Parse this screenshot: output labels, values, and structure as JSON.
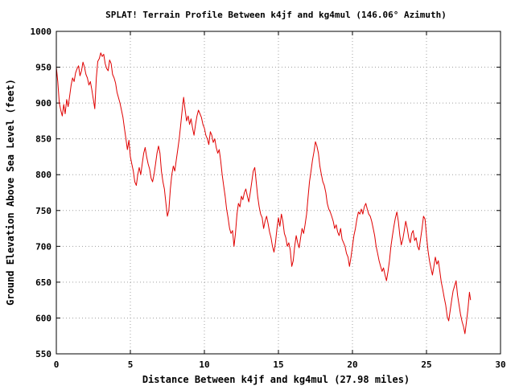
{
  "chart_data": {
    "type": "line",
    "title": "SPLAT! Terrain Profile Between k4jf and kg4mul (146.06° Azimuth)",
    "xlabel": "Distance Between k4jf and kg4mul (27.98 miles)",
    "ylabel": "Ground Elevation Above Sea Level (feet)",
    "xlim": [
      0,
      30
    ],
    "ylim": [
      550,
      1000
    ],
    "x_ticks": [
      0,
      5,
      10,
      15,
      20,
      25,
      30
    ],
    "y_ticks": [
      550,
      600,
      650,
      700,
      750,
      800,
      850,
      900,
      950,
      1000
    ],
    "x_tick_labels": [
      "0",
      "5",
      "10",
      "15",
      "20",
      "25",
      "30"
    ],
    "y_tick_labels": [
      "550",
      "600",
      "650",
      "700",
      "750",
      "800",
      "850",
      "900",
      "950",
      "1000"
    ],
    "grid": true,
    "series": [
      {
        "color": "#e00000",
        "points": [
          [
            0.0,
            950
          ],
          [
            0.1,
            930
          ],
          [
            0.2,
            900
          ],
          [
            0.3,
            890
          ],
          [
            0.4,
            882
          ],
          [
            0.5,
            898
          ],
          [
            0.6,
            885
          ],
          [
            0.7,
            905
          ],
          [
            0.8,
            895
          ],
          [
            0.9,
            910
          ],
          [
            1.0,
            925
          ],
          [
            1.1,
            935
          ],
          [
            1.2,
            930
          ],
          [
            1.3,
            942
          ],
          [
            1.4,
            948
          ],
          [
            1.5,
            952
          ],
          [
            1.6,
            938
          ],
          [
            1.7,
            945
          ],
          [
            1.8,
            957
          ],
          [
            1.9,
            950
          ],
          [
            2.0,
            940
          ],
          [
            2.1,
            935
          ],
          [
            2.2,
            925
          ],
          [
            2.3,
            930
          ],
          [
            2.4,
            918
          ],
          [
            2.5,
            905
          ],
          [
            2.6,
            892
          ],
          [
            2.7,
            935
          ],
          [
            2.8,
            958
          ],
          [
            2.9,
            962
          ],
          [
            3.0,
            970
          ],
          [
            3.1,
            965
          ],
          [
            3.2,
            968
          ],
          [
            3.3,
            955
          ],
          [
            3.4,
            948
          ],
          [
            3.5,
            945
          ],
          [
            3.6,
            960
          ],
          [
            3.7,
            955
          ],
          [
            3.8,
            940
          ],
          [
            3.9,
            935
          ],
          [
            4.0,
            928
          ],
          [
            4.1,
            915
          ],
          [
            4.3,
            900
          ],
          [
            4.5,
            880
          ],
          [
            4.6,
            865
          ],
          [
            4.7,
            850
          ],
          [
            4.8,
            835
          ],
          [
            4.9,
            848
          ],
          [
            5.0,
            825
          ],
          [
            5.1,
            815
          ],
          [
            5.2,
            805
          ],
          [
            5.3,
            790
          ],
          [
            5.4,
            785
          ],
          [
            5.5,
            800
          ],
          [
            5.6,
            810
          ],
          [
            5.7,
            800
          ],
          [
            5.8,
            815
          ],
          [
            5.9,
            830
          ],
          [
            6.0,
            838
          ],
          [
            6.1,
            825
          ],
          [
            6.2,
            815
          ],
          [
            6.3,
            808
          ],
          [
            6.4,
            795
          ],
          [
            6.5,
            790
          ],
          [
            6.6,
            800
          ],
          [
            6.7,
            815
          ],
          [
            6.8,
            830
          ],
          [
            6.9,
            840
          ],
          [
            7.0,
            830
          ],
          [
            7.1,
            805
          ],
          [
            7.2,
            790
          ],
          [
            7.3,
            780
          ],
          [
            7.4,
            760
          ],
          [
            7.5,
            742
          ],
          [
            7.6,
            750
          ],
          [
            7.7,
            780
          ],
          [
            7.8,
            800
          ],
          [
            7.9,
            812
          ],
          [
            8.0,
            805
          ],
          [
            8.1,
            820
          ],
          [
            8.2,
            835
          ],
          [
            8.3,
            850
          ],
          [
            8.4,
            870
          ],
          [
            8.5,
            890
          ],
          [
            8.6,
            908
          ],
          [
            8.7,
            890
          ],
          [
            8.8,
            875
          ],
          [
            8.9,
            882
          ],
          [
            9.0,
            870
          ],
          [
            9.1,
            878
          ],
          [
            9.2,
            865
          ],
          [
            9.3,
            855
          ],
          [
            9.4,
            870
          ],
          [
            9.5,
            882
          ],
          [
            9.6,
            890
          ],
          [
            9.7,
            885
          ],
          [
            9.8,
            880
          ],
          [
            9.9,
            870
          ],
          [
            10.0,
            865
          ],
          [
            10.1,
            855
          ],
          [
            10.2,
            850
          ],
          [
            10.3,
            842
          ],
          [
            10.4,
            860
          ],
          [
            10.5,
            855
          ],
          [
            10.6,
            845
          ],
          [
            10.7,
            850
          ],
          [
            10.8,
            838
          ],
          [
            10.9,
            830
          ],
          [
            11.0,
            835
          ],
          [
            11.1,
            820
          ],
          [
            11.2,
            800
          ],
          [
            11.3,
            785
          ],
          [
            11.4,
            770
          ],
          [
            11.5,
            752
          ],
          [
            11.6,
            740
          ],
          [
            11.7,
            725
          ],
          [
            11.8,
            718
          ],
          [
            11.9,
            722
          ],
          [
            12.0,
            700
          ],
          [
            12.1,
            718
          ],
          [
            12.2,
            745
          ],
          [
            12.3,
            760
          ],
          [
            12.4,
            755
          ],
          [
            12.5,
            770
          ],
          [
            12.6,
            765
          ],
          [
            12.7,
            775
          ],
          [
            12.8,
            780
          ],
          [
            12.9,
            770
          ],
          [
            13.0,
            762
          ],
          [
            13.1,
            775
          ],
          [
            13.2,
            790
          ],
          [
            13.3,
            805
          ],
          [
            13.4,
            810
          ],
          [
            13.5,
            790
          ],
          [
            13.6,
            770
          ],
          [
            13.7,
            755
          ],
          [
            13.8,
            745
          ],
          [
            13.9,
            740
          ],
          [
            14.0,
            725
          ],
          [
            14.1,
            735
          ],
          [
            14.2,
            742
          ],
          [
            14.3,
            732
          ],
          [
            14.4,
            720
          ],
          [
            14.5,
            712
          ],
          [
            14.6,
            700
          ],
          [
            14.7,
            692
          ],
          [
            14.8,
            705
          ],
          [
            14.9,
            725
          ],
          [
            15.0,
            740
          ],
          [
            15.1,
            728
          ],
          [
            15.2,
            745
          ],
          [
            15.3,
            735
          ],
          [
            15.4,
            718
          ],
          [
            15.5,
            712
          ],
          [
            15.6,
            700
          ],
          [
            15.7,
            705
          ],
          [
            15.8,
            695
          ],
          [
            15.9,
            672
          ],
          [
            16.0,
            680
          ],
          [
            16.1,
            700
          ],
          [
            16.2,
            715
          ],
          [
            16.3,
            705
          ],
          [
            16.4,
            698
          ],
          [
            16.5,
            712
          ],
          [
            16.6,
            725
          ],
          [
            16.7,
            718
          ],
          [
            16.8,
            730
          ],
          [
            16.9,
            745
          ],
          [
            17.0,
            768
          ],
          [
            17.1,
            790
          ],
          [
            17.2,
            805
          ],
          [
            17.3,
            820
          ],
          [
            17.4,
            832
          ],
          [
            17.5,
            846
          ],
          [
            17.6,
            840
          ],
          [
            17.7,
            830
          ],
          [
            17.8,
            812
          ],
          [
            17.9,
            800
          ],
          [
            18.0,
            790
          ],
          [
            18.1,
            785
          ],
          [
            18.2,
            775
          ],
          [
            18.3,
            760
          ],
          [
            18.4,
            752
          ],
          [
            18.5,
            748
          ],
          [
            18.6,
            742
          ],
          [
            18.7,
            735
          ],
          [
            18.8,
            725
          ],
          [
            18.9,
            730
          ],
          [
            19.0,
            720
          ],
          [
            19.1,
            715
          ],
          [
            19.2,
            725
          ],
          [
            19.3,
            710
          ],
          [
            19.4,
            705
          ],
          [
            19.5,
            700
          ],
          [
            19.6,
            690
          ],
          [
            19.7,
            685
          ],
          [
            19.8,
            672
          ],
          [
            19.9,
            685
          ],
          [
            20.0,
            700
          ],
          [
            20.1,
            715
          ],
          [
            20.2,
            725
          ],
          [
            20.3,
            738
          ],
          [
            20.4,
            748
          ],
          [
            20.5,
            745
          ],
          [
            20.6,
            752
          ],
          [
            20.7,
            745
          ],
          [
            20.8,
            755
          ],
          [
            20.9,
            760
          ],
          [
            21.0,
            752
          ],
          [
            21.1,
            745
          ],
          [
            21.2,
            742
          ],
          [
            21.3,
            735
          ],
          [
            21.4,
            725
          ],
          [
            21.5,
            715
          ],
          [
            21.6,
            700
          ],
          [
            21.7,
            690
          ],
          [
            21.8,
            680
          ],
          [
            21.9,
            672
          ],
          [
            22.0,
            665
          ],
          [
            22.1,
            670
          ],
          [
            22.2,
            660
          ],
          [
            22.3,
            652
          ],
          [
            22.4,
            665
          ],
          [
            22.5,
            680
          ],
          [
            22.6,
            700
          ],
          [
            22.7,
            715
          ],
          [
            22.8,
            728
          ],
          [
            22.9,
            740
          ],
          [
            23.0,
            748
          ],
          [
            23.1,
            735
          ],
          [
            23.2,
            715
          ],
          [
            23.3,
            702
          ],
          [
            23.4,
            710
          ],
          [
            23.5,
            722
          ],
          [
            23.6,
            735
          ],
          [
            23.7,
            725
          ],
          [
            23.8,
            712
          ],
          [
            23.9,
            705
          ],
          [
            24.0,
            718
          ],
          [
            24.1,
            722
          ],
          [
            24.2,
            708
          ],
          [
            24.3,
            712
          ],
          [
            24.4,
            700
          ],
          [
            24.5,
            695
          ],
          [
            24.6,
            710
          ],
          [
            24.7,
            725
          ],
          [
            24.8,
            742
          ],
          [
            24.9,
            738
          ],
          [
            25.0,
            715
          ],
          [
            25.1,
            695
          ],
          [
            25.2,
            680
          ],
          [
            25.3,
            670
          ],
          [
            25.4,
            660
          ],
          [
            25.5,
            672
          ],
          [
            25.6,
            685
          ],
          [
            25.7,
            675
          ],
          [
            25.8,
            680
          ],
          [
            25.9,
            665
          ],
          [
            26.0,
            650
          ],
          [
            26.1,
            640
          ],
          [
            26.2,
            628
          ],
          [
            26.3,
            618
          ],
          [
            26.4,
            602
          ],
          [
            26.5,
            596
          ],
          [
            26.6,
            610
          ],
          [
            26.7,
            625
          ],
          [
            26.8,
            638
          ],
          [
            26.9,
            645
          ],
          [
            27.0,
            652
          ],
          [
            27.1,
            632
          ],
          [
            27.2,
            618
          ],
          [
            27.3,
            605
          ],
          [
            27.4,
            595
          ],
          [
            27.5,
            588
          ],
          [
            27.6,
            578
          ],
          [
            27.7,
            595
          ],
          [
            27.8,
            612
          ],
          [
            27.9,
            636
          ],
          [
            27.98,
            625
          ]
        ]
      }
    ]
  }
}
